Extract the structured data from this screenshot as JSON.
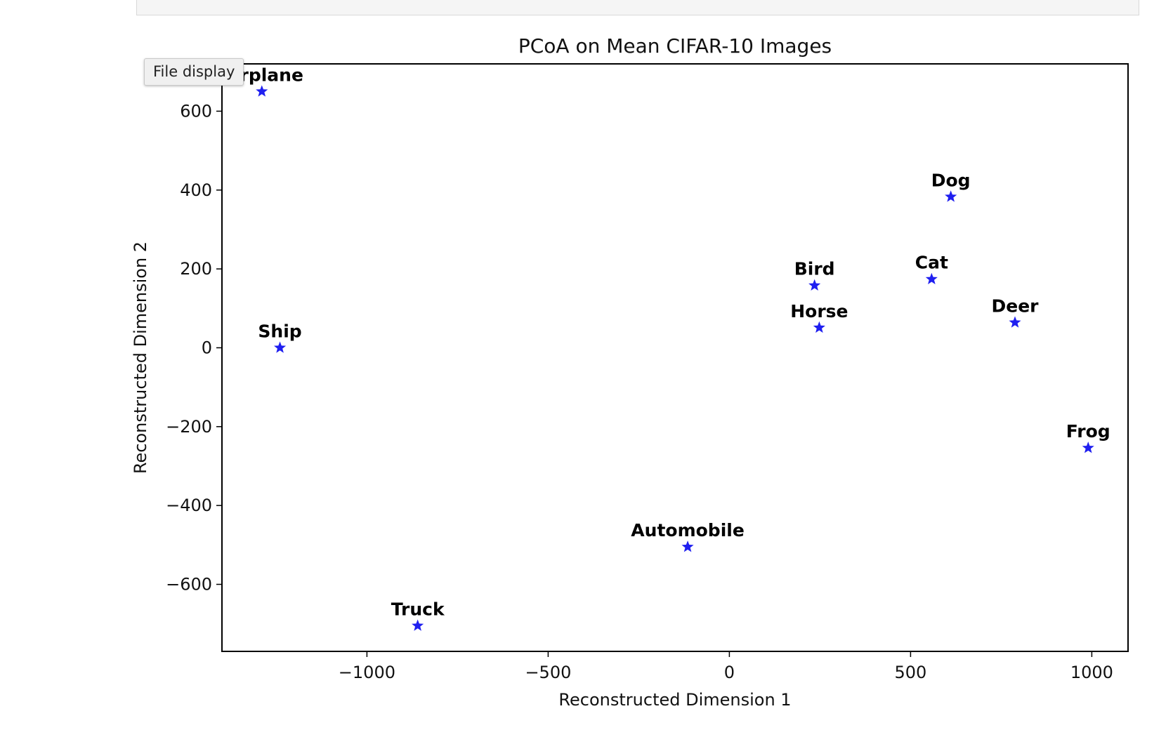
{
  "tooltip": {
    "label": "File display"
  },
  "chart_data": {
    "type": "scatter",
    "title": "PCoA on Mean CIFAR-10 Images",
    "xlabel": "Reconstructed Dimension 1",
    "ylabel": "Reconstructed Dimension 2",
    "xlim": [
      -1400,
      1100
    ],
    "ylim": [
      -770,
      720
    ],
    "xticks": [
      -1000,
      -500,
      0,
      500,
      1000
    ],
    "xtick_labels": [
      "−1000",
      "−500",
      "0",
      "500",
      "1000"
    ],
    "yticks": [
      -600,
      -400,
      -200,
      0,
      200,
      400,
      600
    ],
    "ytick_labels": [
      "−600",
      "−400",
      "−200",
      "0",
      "200",
      "400",
      "600"
    ],
    "marker": "star",
    "marker_color": "#1f1ff0",
    "grid": false,
    "points": [
      {
        "label": "Airplane",
        "x": -1290,
        "y": 650
      },
      {
        "label": "Ship",
        "x": -1240,
        "y": 0
      },
      {
        "label": "Truck",
        "x": -860,
        "y": -705
      },
      {
        "label": "Automobile",
        "x": -115,
        "y": -505
      },
      {
        "label": "Bird",
        "x": 235,
        "y": 158
      },
      {
        "label": "Horse",
        "x": 248,
        "y": 51
      },
      {
        "label": "Cat",
        "x": 558,
        "y": 174
      },
      {
        "label": "Dog",
        "x": 611,
        "y": 383
      },
      {
        "label": "Deer",
        "x": 788,
        "y": 64
      },
      {
        "label": "Frog",
        "x": 990,
        "y": -254
      }
    ]
  }
}
